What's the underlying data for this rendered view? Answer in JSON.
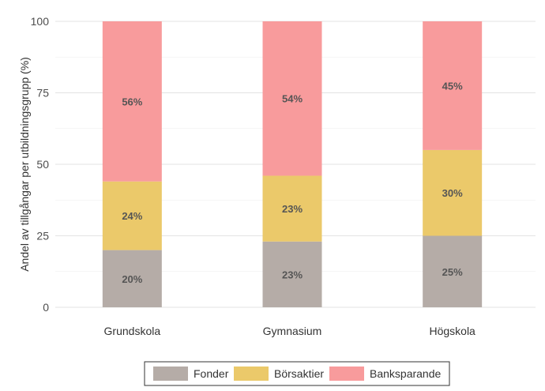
{
  "chart_data": {
    "type": "bar",
    "stacked": true,
    "title": "",
    "xlabel": "",
    "ylabel": "Andel av tillgångar per utbildningsgrupp (%)",
    "ylim": [
      0,
      100
    ],
    "yticks": [
      0,
      25,
      50,
      75,
      100
    ],
    "categories": [
      "Grundskola",
      "Gymnasium",
      "Högskola"
    ],
    "series": [
      {
        "name": "Fonder",
        "color": "#b5aca7",
        "values": [
          20,
          23,
          25
        ],
        "labels": [
          "20%",
          "23%",
          "25%"
        ]
      },
      {
        "name": "Börsaktier",
        "color": "#ebc96a",
        "values": [
          24,
          23,
          30
        ],
        "labels": [
          "24%",
          "23%",
          "30%"
        ]
      },
      {
        "name": "Banksparande",
        "color": "#f89b9c",
        "values": [
          56,
          54,
          45
        ],
        "labels": [
          "56%",
          "54%",
          "45%"
        ]
      }
    ],
    "legend": "bottom",
    "grid": true
  }
}
